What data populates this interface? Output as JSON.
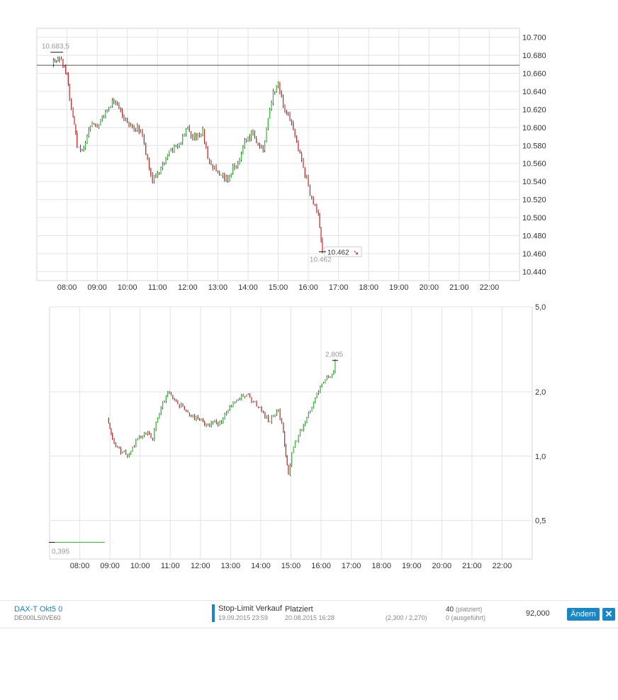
{
  "chart_data": [
    {
      "type": "line",
      "title": "",
      "x_ticks": [
        "08:00",
        "09:00",
        "10:00",
        "11:00",
        "12:00",
        "13:00",
        "14:00",
        "15:00",
        "16:00",
        "17:00",
        "18:00",
        "19:00",
        "20:00",
        "21:00",
        "22:00"
      ],
      "y_ticks": [
        "10.700",
        "10.680",
        "10.660",
        "10.640",
        "10.620",
        "10.600",
        "10.580",
        "10.560",
        "10.540",
        "10.520",
        "10.500",
        "10.480",
        "10.460",
        "10.440"
      ],
      "ylim": [
        10430,
        10710
      ],
      "xlim_hours": [
        7.0,
        23.0
      ],
      "grid": true,
      "reference_line": 10669,
      "open_label": "10.683,5",
      "low_label": "10.462",
      "last_price_label": "10.462",
      "last_price_trend": "down",
      "series": [
        {
          "x": [
            "07:30",
            "07:45",
            "07:52",
            "08:00",
            "08:05",
            "08:12",
            "08:20",
            "08:30",
            "08:40",
            "08:50",
            "09:00",
            "09:10",
            "09:20",
            "09:30",
            "09:40",
            "09:50",
            "10:00",
            "10:10",
            "10:20",
            "10:30",
            "10:40",
            "10:50",
            "11:00",
            "11:10",
            "11:20",
            "11:30",
            "11:40",
            "11:50",
            "12:00",
            "12:10",
            "12:20",
            "12:30",
            "12:40",
            "12:50",
            "13:00",
            "13:10",
            "13:20",
            "13:30",
            "13:40",
            "13:50",
            "14:00",
            "14:10",
            "14:20",
            "14:30",
            "14:40",
            "14:50",
            "15:00",
            "15:10",
            "15:20",
            "15:30",
            "15:40",
            "15:50",
            "16:00",
            "16:10",
            "16:20",
            "16:28"
          ],
          "y": [
            10670,
            10675,
            10668,
            10660,
            10632,
            10612,
            10578,
            10575,
            10590,
            10605,
            10600,
            10612,
            10620,
            10630,
            10625,
            10612,
            10605,
            10600,
            10602,
            10590,
            10565,
            10540,
            10550,
            10560,
            10570,
            10573,
            10580,
            10590,
            10600,
            10588,
            10592,
            10598,
            10565,
            10555,
            10550,
            10548,
            10540,
            10558,
            10560,
            10578,
            10590,
            10594,
            10580,
            10575,
            10610,
            10640,
            10650,
            10623,
            10615,
            10598,
            10575,
            10555,
            10535,
            10515,
            10505,
            10462
          ]
        }
      ]
    },
    {
      "type": "line",
      "title": "",
      "scale": "log",
      "x_ticks": [
        "08:00",
        "09:00",
        "10:00",
        "11:00",
        "12:00",
        "13:00",
        "14:00",
        "15:00",
        "16:00",
        "17:00",
        "18:00",
        "19:00",
        "20:00",
        "21:00",
        "22:00"
      ],
      "y_ticks": [
        "5,0",
        "2,0",
        "1,0",
        "0,5"
      ],
      "ylim": [
        0.33,
        5.0
      ],
      "xlim_hours": [
        7.0,
        23.0
      ],
      "grid": true,
      "open_label": "0,395",
      "high_label": "2,805",
      "series": [
        {
          "x": [
            "07:00",
            "08:50",
            "08:55",
            "09:00",
            "09:05",
            "09:15",
            "09:25",
            "09:35",
            "09:45",
            "09:55",
            "10:05",
            "10:15",
            "10:25",
            "10:35",
            "10:45",
            "10:55",
            "11:05",
            "11:15",
            "11:25",
            "11:35",
            "11:45",
            "11:55",
            "12:05",
            "12:15",
            "12:25",
            "12:35",
            "12:45",
            "12:55",
            "13:05",
            "13:15",
            "13:25",
            "13:35",
            "13:45",
            "13:55",
            "14:05",
            "14:15",
            "14:25",
            "14:35",
            "14:45",
            "14:50",
            "14:55",
            "15:05",
            "15:15",
            "15:25",
            "15:35",
            "15:45",
            "15:55",
            "16:05",
            "16:15",
            "16:25",
            "16:28"
          ],
          "y": [
            0.395,
            0.395,
            1.5,
            1.35,
            1.2,
            1.1,
            1.05,
            1.0,
            1.1,
            1.2,
            1.25,
            1.3,
            1.2,
            1.5,
            1.8,
            2.0,
            1.85,
            1.75,
            1.7,
            1.6,
            1.55,
            1.5,
            1.45,
            1.4,
            1.45,
            1.4,
            1.5,
            1.65,
            1.8,
            1.85,
            1.9,
            1.95,
            1.8,
            1.7,
            1.6,
            1.45,
            1.55,
            1.65,
            1.3,
            1.0,
            0.82,
            1.1,
            1.25,
            1.4,
            1.6,
            1.8,
            2.0,
            2.2,
            2.35,
            2.5,
            2.805
          ]
        }
      ]
    }
  ],
  "order": {
    "instrument_name": "DAX-T Okt5 0",
    "isin": "DE000LS0VE60",
    "order_type": "Stop-Limit Verkauf",
    "valid_until": "19.09.2015 23:59",
    "status": "Platziert",
    "status_date": "20.08.2015 16:28",
    "limits": "(2,300 / 2,270)",
    "qty_placed": "40",
    "qty_placed_note": "(platziert)",
    "qty_executed": "0 (ausgeführt)",
    "price": "92,000",
    "edit_label": "Ändern",
    "close_label": "✕"
  },
  "colors": {
    "up": "#2bc42b",
    "down": "#d62020",
    "wick": "#111111",
    "grid": "#e3e3e3",
    "axis_text": "#333333",
    "label_text": "#999999",
    "accent": "#1a86c6"
  }
}
